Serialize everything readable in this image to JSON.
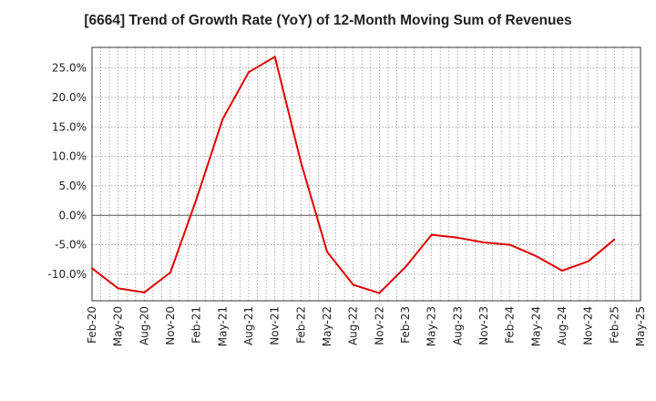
{
  "chart_data": {
    "type": "line",
    "title": "[6664]  Trend of Growth Rate (YoY) of 12-Month Moving Sum of Revenues",
    "xlabel": "",
    "ylabel": "",
    "x_tick_labels": [
      "Feb-20",
      "May-20",
      "Aug-20",
      "Nov-20",
      "Feb-21",
      "May-21",
      "Aug-21",
      "Nov-21",
      "Feb-22",
      "May-22",
      "Aug-22",
      "Nov-22",
      "Feb-23",
      "May-23",
      "Aug-23",
      "Nov-23",
      "Feb-24",
      "May-24",
      "Aug-24",
      "Nov-24",
      "Feb-25",
      "May-25"
    ],
    "y_tick_values": [
      -10,
      -5,
      0,
      5,
      10,
      15,
      20,
      25
    ],
    "y_tick_labels": [
      "-10.0%",
      "-5.0%",
      "0.0%",
      "5.0%",
      "10.0%",
      "15.0%",
      "20.0%",
      "25.0%"
    ],
    "ylim": [
      -14.5,
      28.5
    ],
    "grid": true,
    "legend": "none",
    "series": [
      {
        "color": "#e00000",
        "x": [
          "Feb-20",
          "May-20",
          "Aug-20",
          "Nov-20",
          "Feb-21",
          "May-21",
          "Aug-21",
          "Nov-21",
          "Feb-22",
          "May-22",
          "Aug-22",
          "Nov-22",
          "Feb-23",
          "May-23",
          "Aug-23",
          "Nov-23",
          "Feb-24",
          "May-24",
          "Aug-24",
          "Nov-24",
          "Feb-25"
        ],
        "values": [
          -9.0,
          -12.4,
          -13.1,
          -9.7,
          2.8,
          16.3,
          24.3,
          26.9,
          9.0,
          -6.2,
          -11.8,
          -13.2,
          -8.8,
          -3.3,
          -3.8,
          -4.6,
          -5.0,
          -6.9,
          -9.4,
          -7.8,
          -4.1
        ]
      }
    ]
  }
}
